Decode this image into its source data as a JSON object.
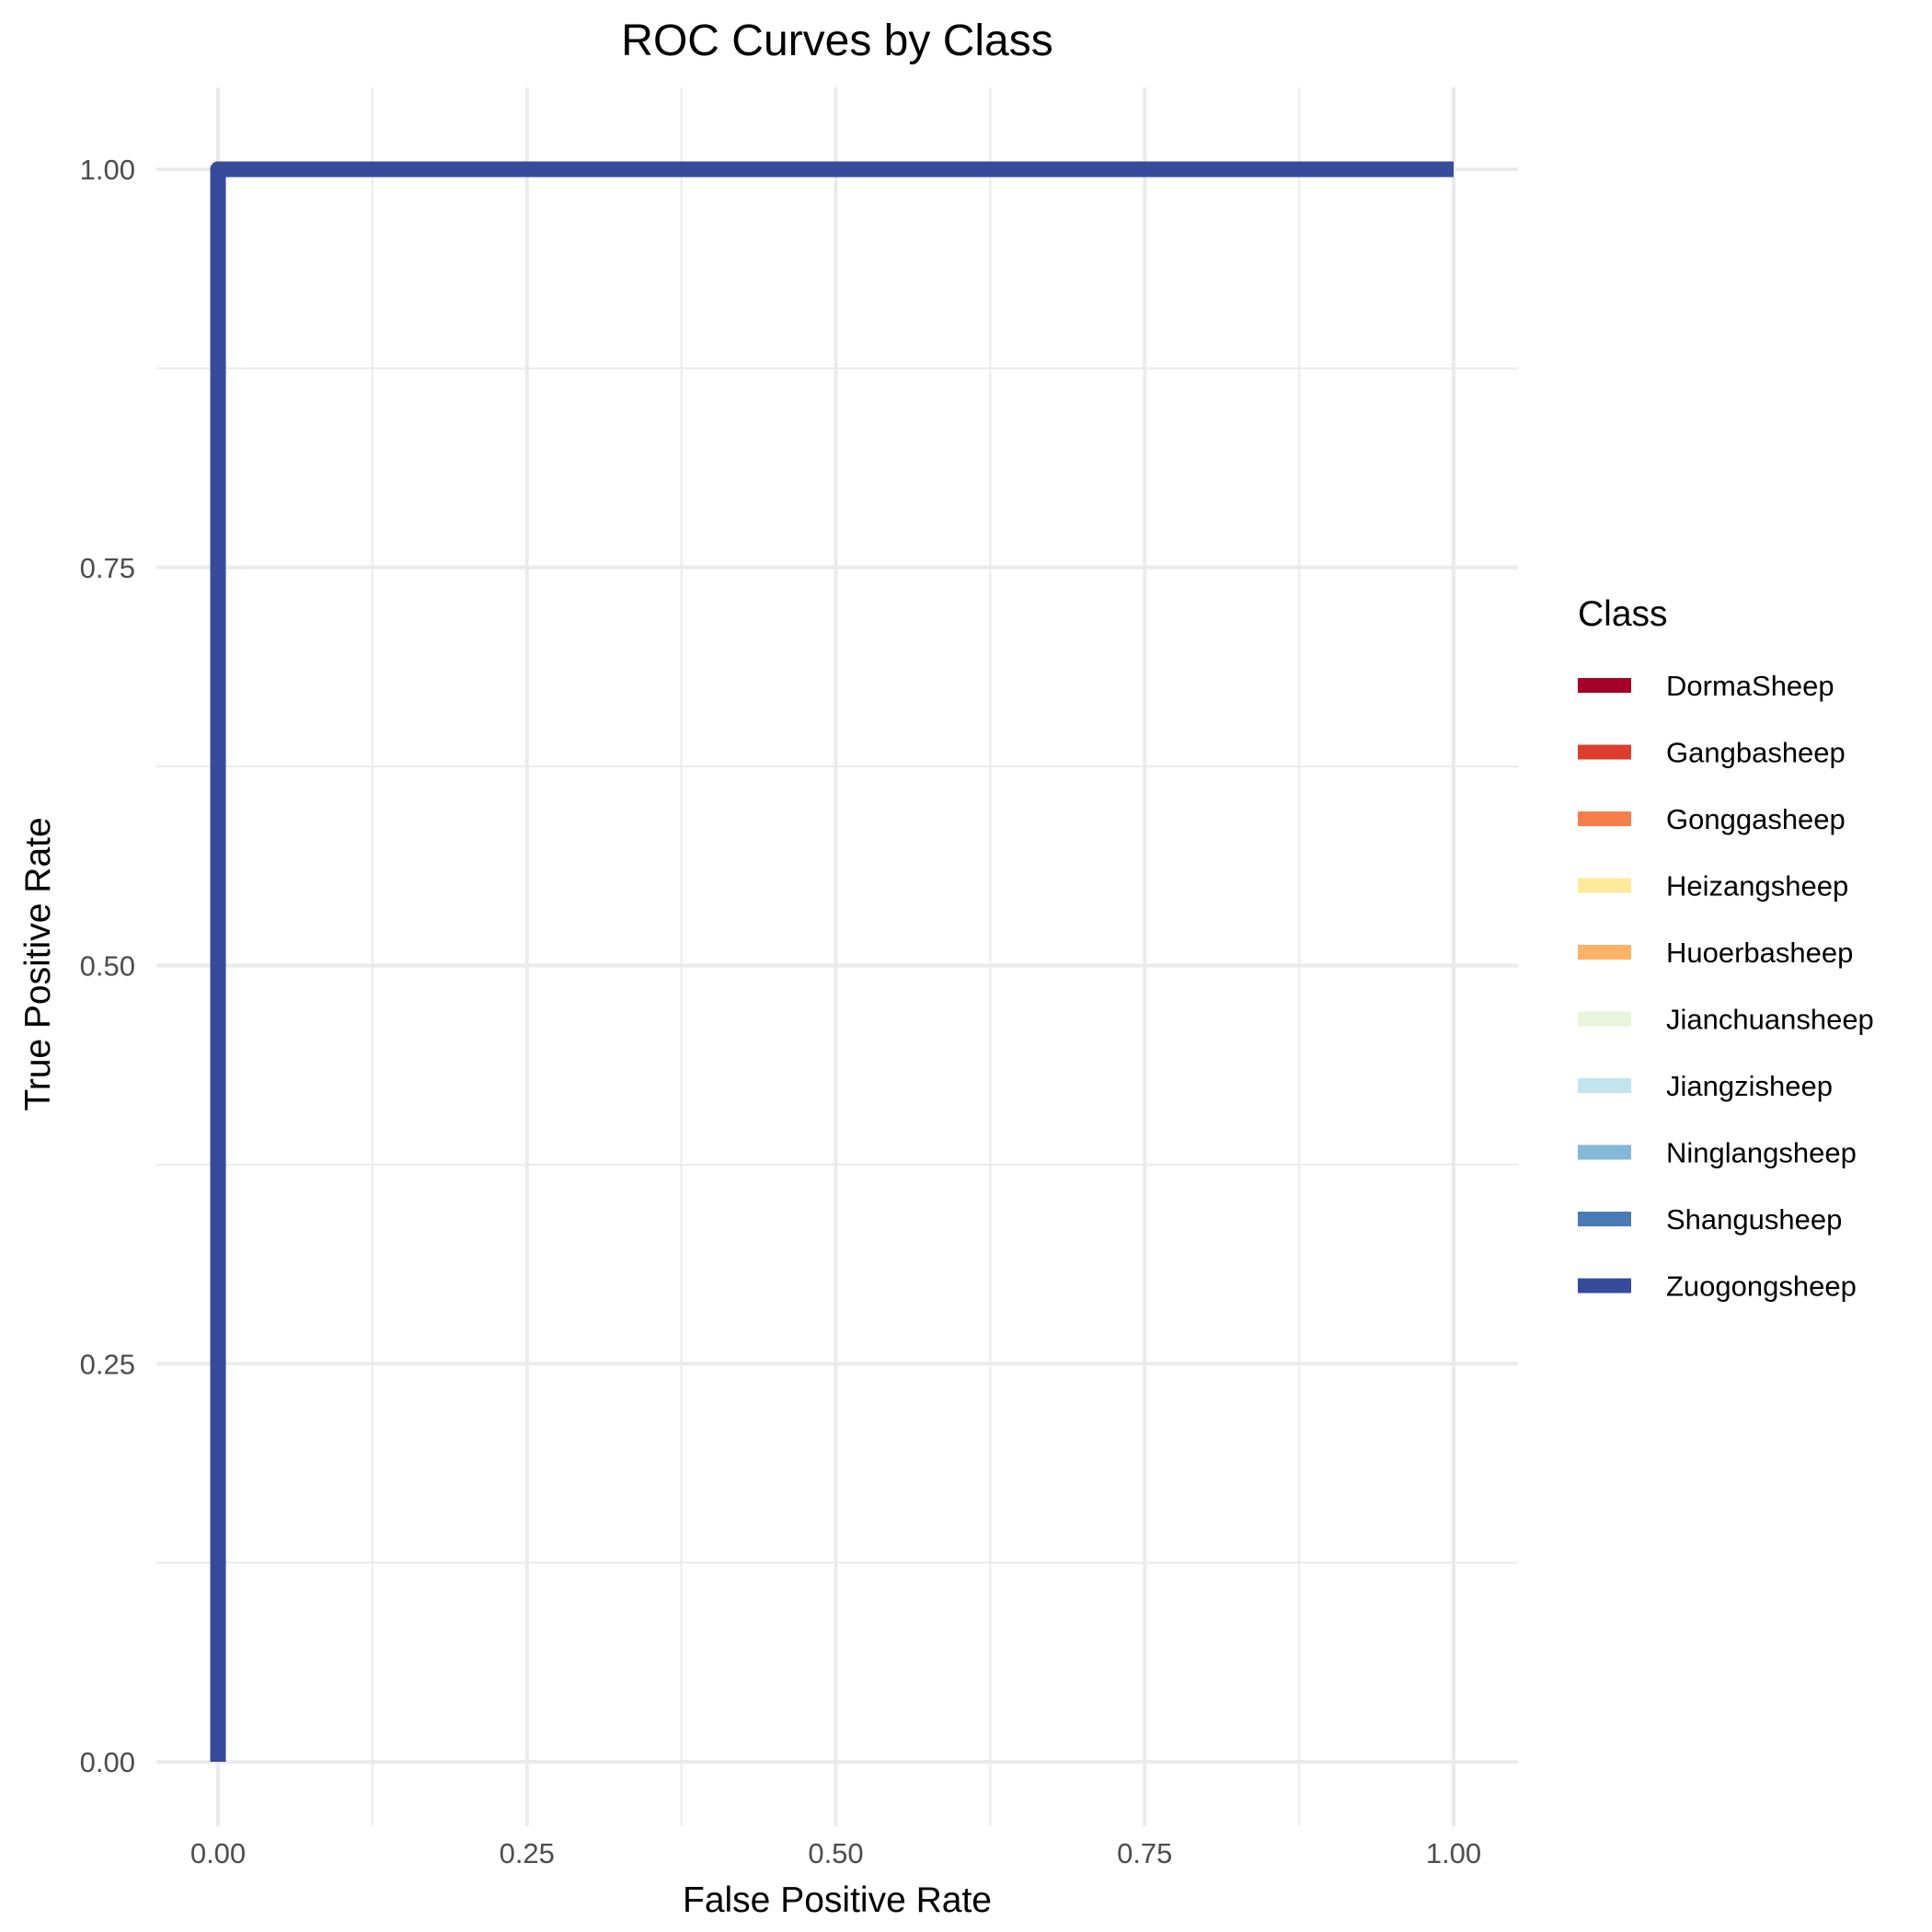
{
  "chart_data": {
    "type": "line",
    "title": "ROC Curves by Class",
    "xlabel": "False Positive Rate",
    "ylabel": "True Positive Rate",
    "xlim": [
      0,
      1
    ],
    "ylim": [
      0,
      1
    ],
    "x_ticks": [
      "0.00",
      "0.25",
      "0.50",
      "0.75",
      "1.00"
    ],
    "y_ticks": [
      "0.00",
      "0.25",
      "0.50",
      "0.75",
      "1.00"
    ],
    "grid": true,
    "legend_title": "Class",
    "legend_position": "right",
    "series": [
      {
        "name": "DormaSheep",
        "color": "#a50026",
        "x": [
          0,
          0,
          1
        ],
        "y": [
          0,
          1,
          1
        ]
      },
      {
        "name": "Gangbasheep",
        "color": "#dd3d2d",
        "x": [
          0,
          0,
          1
        ],
        "y": [
          0,
          1,
          1
        ]
      },
      {
        "name": "Gonggasheep",
        "color": "#f67e4b",
        "x": [
          0,
          0,
          1
        ],
        "y": [
          0,
          1,
          1
        ]
      },
      {
        "name": "Heizangsheep",
        "color": "#feea9b",
        "x": [
          0,
          0,
          1
        ],
        "y": [
          0,
          1,
          1
        ]
      },
      {
        "name": "Huoerbasheep",
        "color": "#fdb366",
        "x": [
          0,
          0,
          1
        ],
        "y": [
          0,
          1,
          1
        ]
      },
      {
        "name": "Jianchuansheep",
        "color": "#eaf4da",
        "x": [
          0,
          0,
          1
        ],
        "y": [
          0,
          1,
          1
        ]
      },
      {
        "name": "Jiangzisheep",
        "color": "#c2e4ef",
        "x": [
          0,
          0,
          1
        ],
        "y": [
          0,
          1,
          1
        ]
      },
      {
        "name": "Ninglangsheep",
        "color": "#83b8d7",
        "x": [
          0,
          0,
          1
        ],
        "y": [
          0,
          1,
          1
        ]
      },
      {
        "name": "Shangusheep",
        "color": "#4a7bb7",
        "x": [
          0,
          0,
          1
        ],
        "y": [
          0,
          1,
          1
        ]
      },
      {
        "name": "Zuogongsheep",
        "color": "#364b9a",
        "x": [
          0,
          0,
          1
        ],
        "y": [
          0,
          1,
          1
        ]
      }
    ]
  }
}
